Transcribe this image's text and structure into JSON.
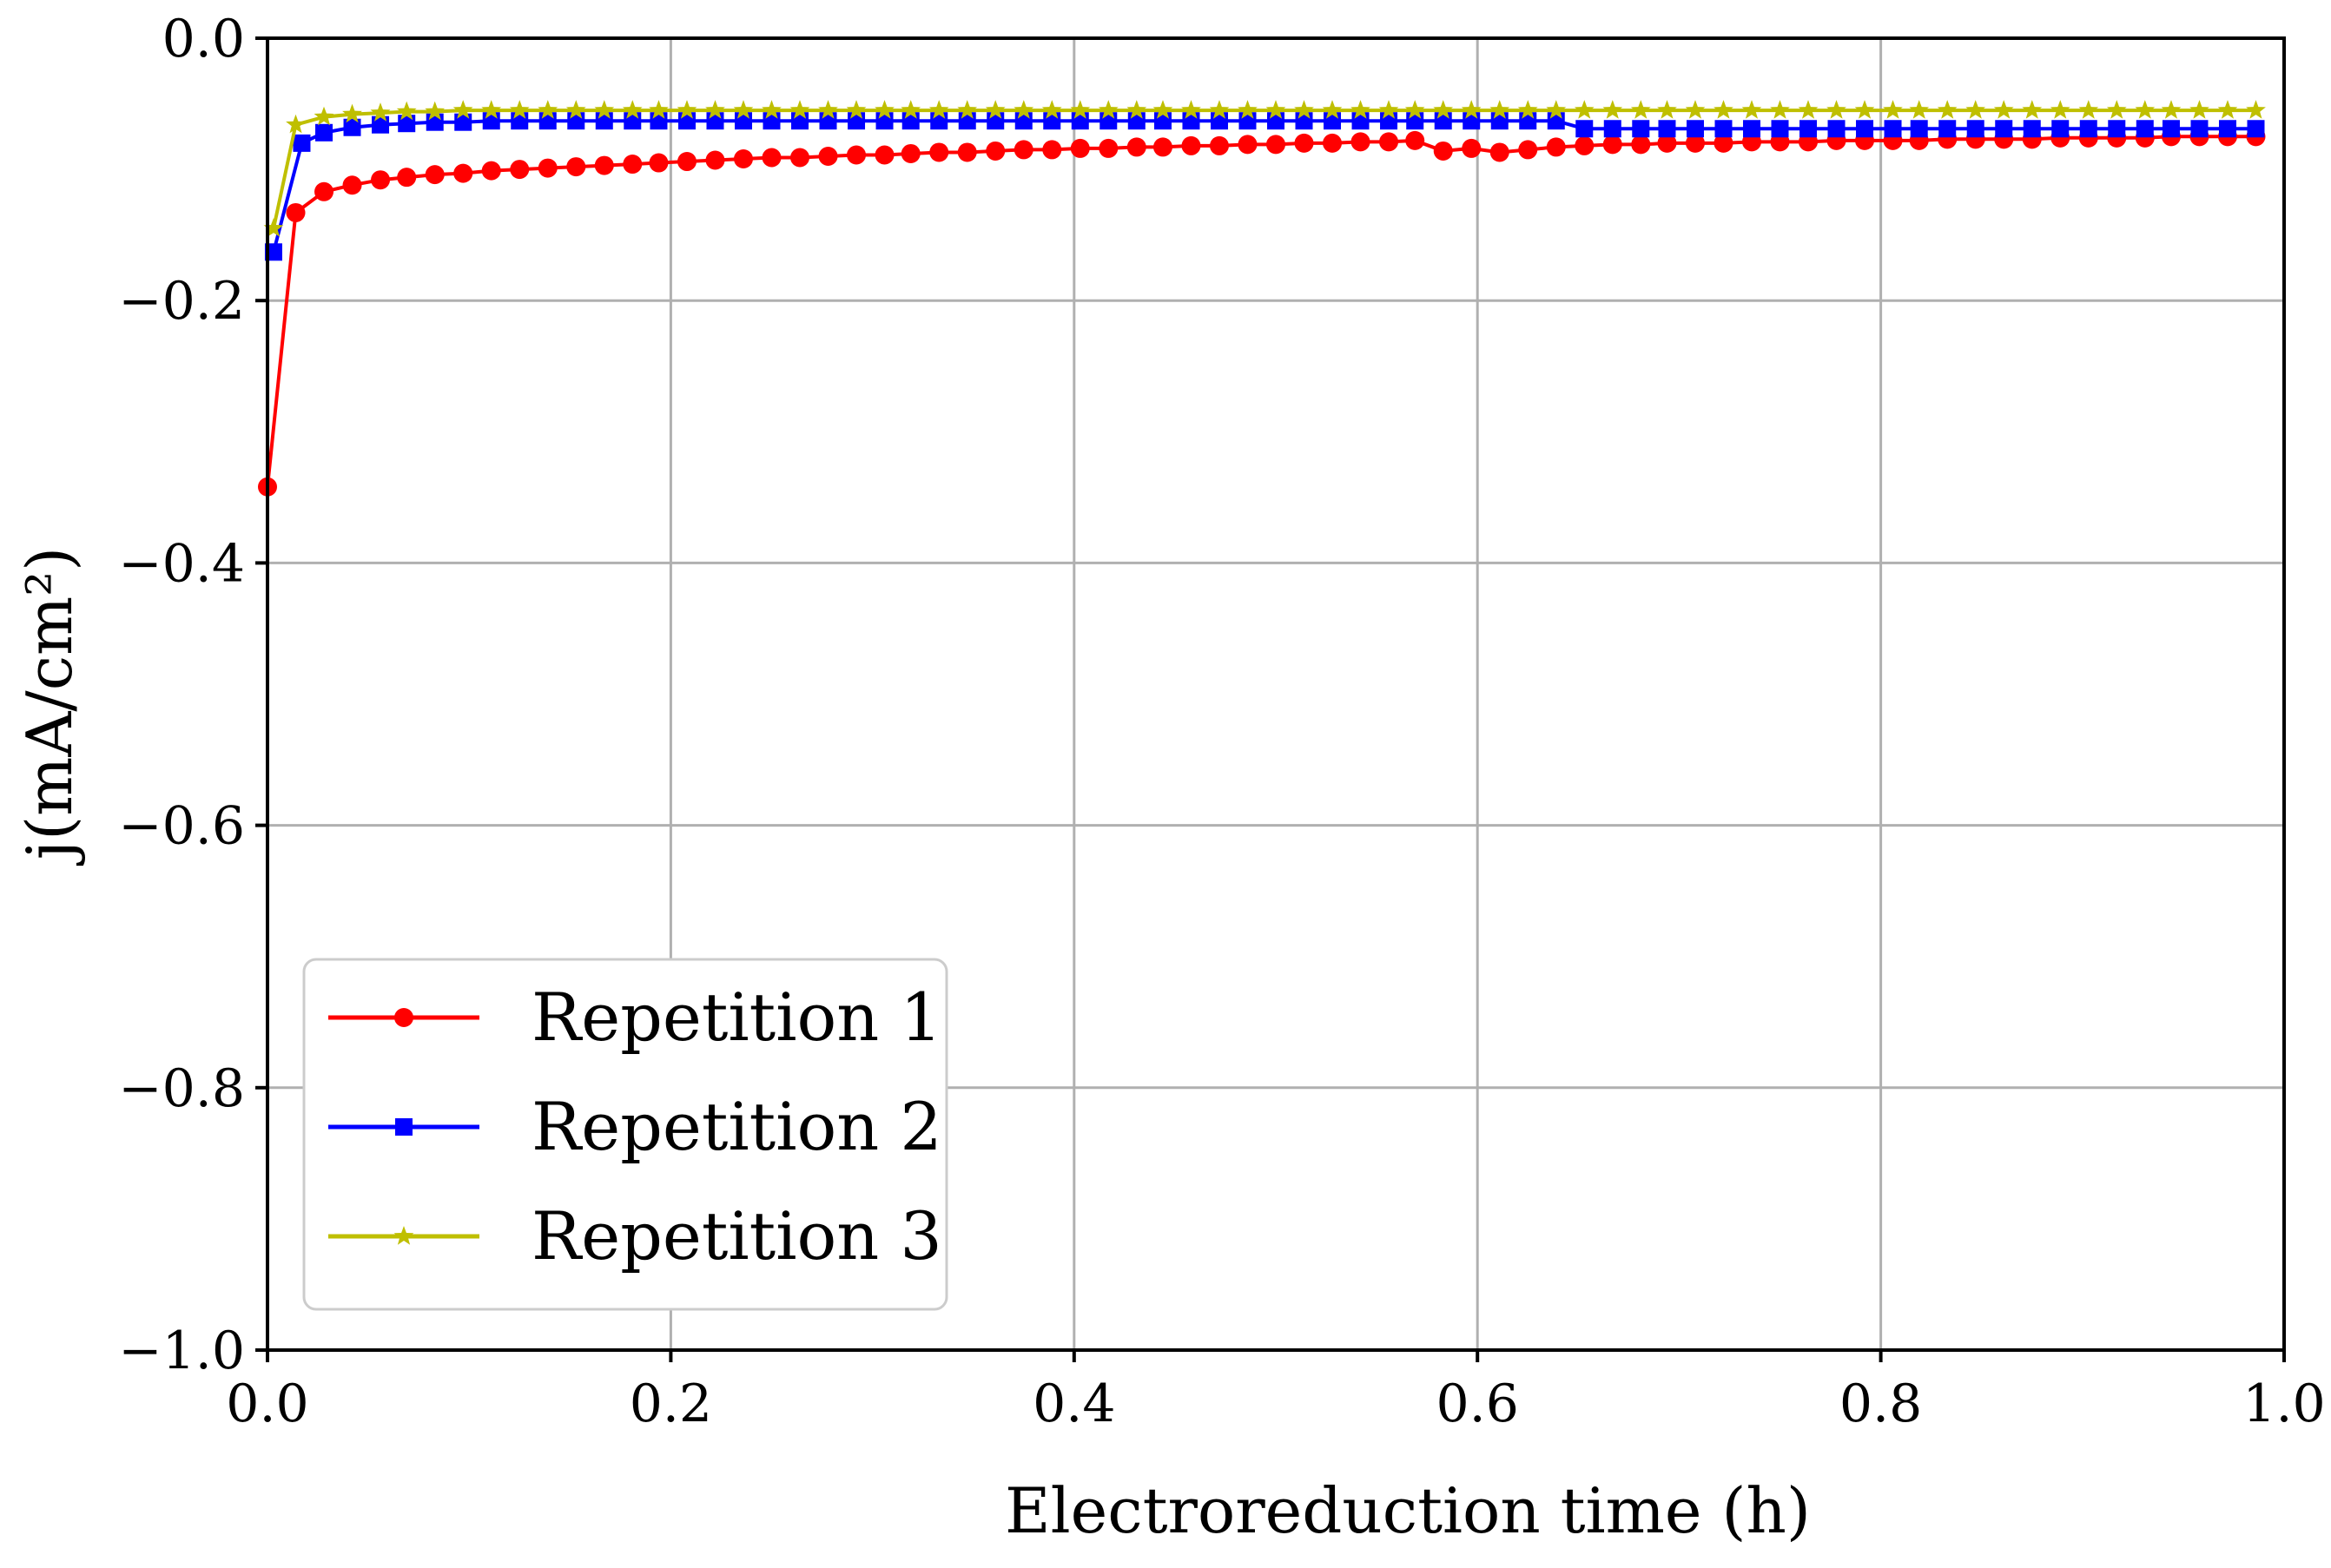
{
  "chart_data": {
    "type": "line",
    "title": "",
    "xlabel": "Electroreduction time (h)",
    "ylabel": "j(mA/cm²)",
    "xlim": [
      0.0,
      1.0
    ],
    "ylim": [
      -1.0,
      0.0
    ],
    "x_ticks": [
      0.0,
      0.2,
      0.4,
      0.6,
      0.8,
      1.0
    ],
    "x_tick_labels": [
      "0.0",
      "0.2",
      "0.4",
      "0.6",
      "0.8",
      "1.0"
    ],
    "y_ticks": [
      0.0,
      -0.2,
      -0.4,
      -0.6,
      -0.8,
      -1.0
    ],
    "y_tick_labels": [
      "0.0",
      "−0.2",
      "−0.4",
      "−0.6",
      "−0.8",
      "−1.0"
    ],
    "grid": true,
    "legend_position": "lower-left",
    "series": [
      {
        "name": "Repetition 1",
        "color": "#ff0000",
        "marker": "circle",
        "x": [
          0.0,
          0.014,
          0.028,
          0.042,
          0.056,
          0.069,
          0.083,
          0.097,
          0.111,
          0.125,
          0.139,
          0.153,
          0.167,
          0.181,
          0.194,
          0.208,
          0.222,
          0.236,
          0.25,
          0.264,
          0.278,
          0.292,
          0.306,
          0.319,
          0.333,
          0.347,
          0.361,
          0.375,
          0.389,
          0.403,
          0.417,
          0.431,
          0.444,
          0.458,
          0.472,
          0.486,
          0.5,
          0.514,
          0.528,
          0.542,
          0.556,
          0.569,
          0.583,
          0.597,
          0.611,
          0.625,
          0.639,
          0.653,
          0.667,
          0.681,
          0.694,
          0.708,
          0.722,
          0.736,
          0.75,
          0.764,
          0.778,
          0.792,
          0.806,
          0.819,
          0.833,
          0.847,
          0.861,
          0.875,
          0.889,
          0.903,
          0.917,
          0.931,
          0.944,
          0.958,
          0.972,
          0.986
        ],
        "y": [
          -0.342,
          -0.133,
          -0.117,
          -0.112,
          -0.108,
          -0.106,
          -0.104,
          -0.103,
          -0.101,
          -0.1,
          -0.099,
          -0.098,
          -0.097,
          -0.096,
          -0.095,
          -0.094,
          -0.093,
          -0.092,
          -0.091,
          -0.091,
          -0.09,
          -0.089,
          -0.089,
          -0.088,
          -0.087,
          -0.087,
          -0.086,
          -0.085,
          -0.085,
          -0.084,
          -0.084,
          -0.083,
          -0.083,
          -0.082,
          -0.082,
          -0.081,
          -0.081,
          -0.08,
          -0.08,
          -0.079,
          -0.079,
          -0.078,
          -0.086,
          -0.084,
          -0.087,
          -0.085,
          -0.083,
          -0.082,
          -0.081,
          -0.081,
          -0.08,
          -0.08,
          -0.08,
          -0.079,
          -0.079,
          -0.079,
          -0.078,
          -0.078,
          -0.078,
          -0.078,
          -0.077,
          -0.077,
          -0.077,
          -0.077,
          -0.076,
          -0.076,
          -0.076,
          -0.076,
          -0.075,
          -0.075,
          -0.075,
          -0.075
        ]
      },
      {
        "name": "Repetition 2",
        "color": "#0000ff",
        "marker": "square",
        "x": [
          0.003,
          0.017,
          0.028,
          0.042,
          0.056,
          0.069,
          0.083,
          0.097,
          0.111,
          0.125,
          0.139,
          0.153,
          0.167,
          0.181,
          0.194,
          0.208,
          0.222,
          0.236,
          0.25,
          0.264,
          0.278,
          0.292,
          0.306,
          0.319,
          0.333,
          0.347,
          0.361,
          0.375,
          0.389,
          0.403,
          0.417,
          0.431,
          0.444,
          0.458,
          0.472,
          0.486,
          0.5,
          0.514,
          0.528,
          0.542,
          0.556,
          0.569,
          0.583,
          0.597,
          0.611,
          0.625,
          0.639,
          0.653,
          0.667,
          0.681,
          0.694,
          0.708,
          0.722,
          0.736,
          0.75,
          0.764,
          0.778,
          0.792,
          0.806,
          0.819,
          0.833,
          0.847,
          0.861,
          0.875,
          0.889,
          0.903,
          0.917,
          0.931,
          0.944,
          0.958,
          0.972,
          0.986
        ],
        "y": [
          -0.163,
          -0.08,
          -0.072,
          -0.068,
          -0.066,
          -0.065,
          -0.064,
          -0.064,
          -0.063,
          -0.063,
          -0.063,
          -0.063,
          -0.063,
          -0.063,
          -0.063,
          -0.063,
          -0.063,
          -0.063,
          -0.063,
          -0.063,
          -0.063,
          -0.063,
          -0.063,
          -0.063,
          -0.063,
          -0.063,
          -0.063,
          -0.063,
          -0.063,
          -0.063,
          -0.063,
          -0.063,
          -0.063,
          -0.063,
          -0.063,
          -0.063,
          -0.063,
          -0.063,
          -0.063,
          -0.063,
          -0.063,
          -0.063,
          -0.063,
          -0.063,
          -0.063,
          -0.063,
          -0.063,
          -0.069,
          -0.069,
          -0.069,
          -0.069,
          -0.069,
          -0.069,
          -0.069,
          -0.069,
          -0.069,
          -0.069,
          -0.069,
          -0.069,
          -0.069,
          -0.069,
          -0.069,
          -0.069,
          -0.069,
          -0.069,
          -0.069,
          -0.069,
          -0.069,
          -0.069,
          -0.069,
          -0.069,
          -0.069
        ]
      },
      {
        "name": "Repetition 3",
        "color": "#bfbf00",
        "marker": "star",
        "x": [
          0.003,
          0.014,
          0.028,
          0.042,
          0.056,
          0.069,
          0.083,
          0.097,
          0.111,
          0.125,
          0.139,
          0.153,
          0.167,
          0.181,
          0.194,
          0.208,
          0.222,
          0.236,
          0.25,
          0.264,
          0.278,
          0.292,
          0.306,
          0.319,
          0.333,
          0.347,
          0.361,
          0.375,
          0.389,
          0.403,
          0.417,
          0.431,
          0.444,
          0.458,
          0.472,
          0.486,
          0.5,
          0.514,
          0.528,
          0.542,
          0.556,
          0.569,
          0.583,
          0.597,
          0.611,
          0.625,
          0.639,
          0.653,
          0.667,
          0.681,
          0.694,
          0.708,
          0.722,
          0.736,
          0.75,
          0.764,
          0.778,
          0.792,
          0.806,
          0.819,
          0.833,
          0.847,
          0.861,
          0.875,
          0.889,
          0.903,
          0.917,
          0.931,
          0.944,
          0.958,
          0.972,
          0.986
        ],
        "y": [
          -0.145,
          -0.066,
          -0.06,
          -0.058,
          -0.057,
          -0.056,
          -0.056,
          -0.055,
          -0.055,
          -0.055,
          -0.055,
          -0.055,
          -0.055,
          -0.055,
          -0.055,
          -0.055,
          -0.055,
          -0.055,
          -0.055,
          -0.055,
          -0.055,
          -0.055,
          -0.055,
          -0.055,
          -0.055,
          -0.055,
          -0.055,
          -0.055,
          -0.055,
          -0.055,
          -0.055,
          -0.055,
          -0.055,
          -0.055,
          -0.055,
          -0.055,
          -0.055,
          -0.055,
          -0.055,
          -0.055,
          -0.055,
          -0.055,
          -0.055,
          -0.055,
          -0.055,
          -0.055,
          -0.055,
          -0.055,
          -0.055,
          -0.055,
          -0.055,
          -0.055,
          -0.055,
          -0.055,
          -0.055,
          -0.055,
          -0.055,
          -0.055,
          -0.055,
          -0.055,
          -0.055,
          -0.055,
          -0.055,
          -0.055,
          -0.055,
          -0.055,
          -0.055,
          -0.055,
          -0.055,
          -0.055,
          -0.055,
          -0.055
        ]
      }
    ]
  }
}
